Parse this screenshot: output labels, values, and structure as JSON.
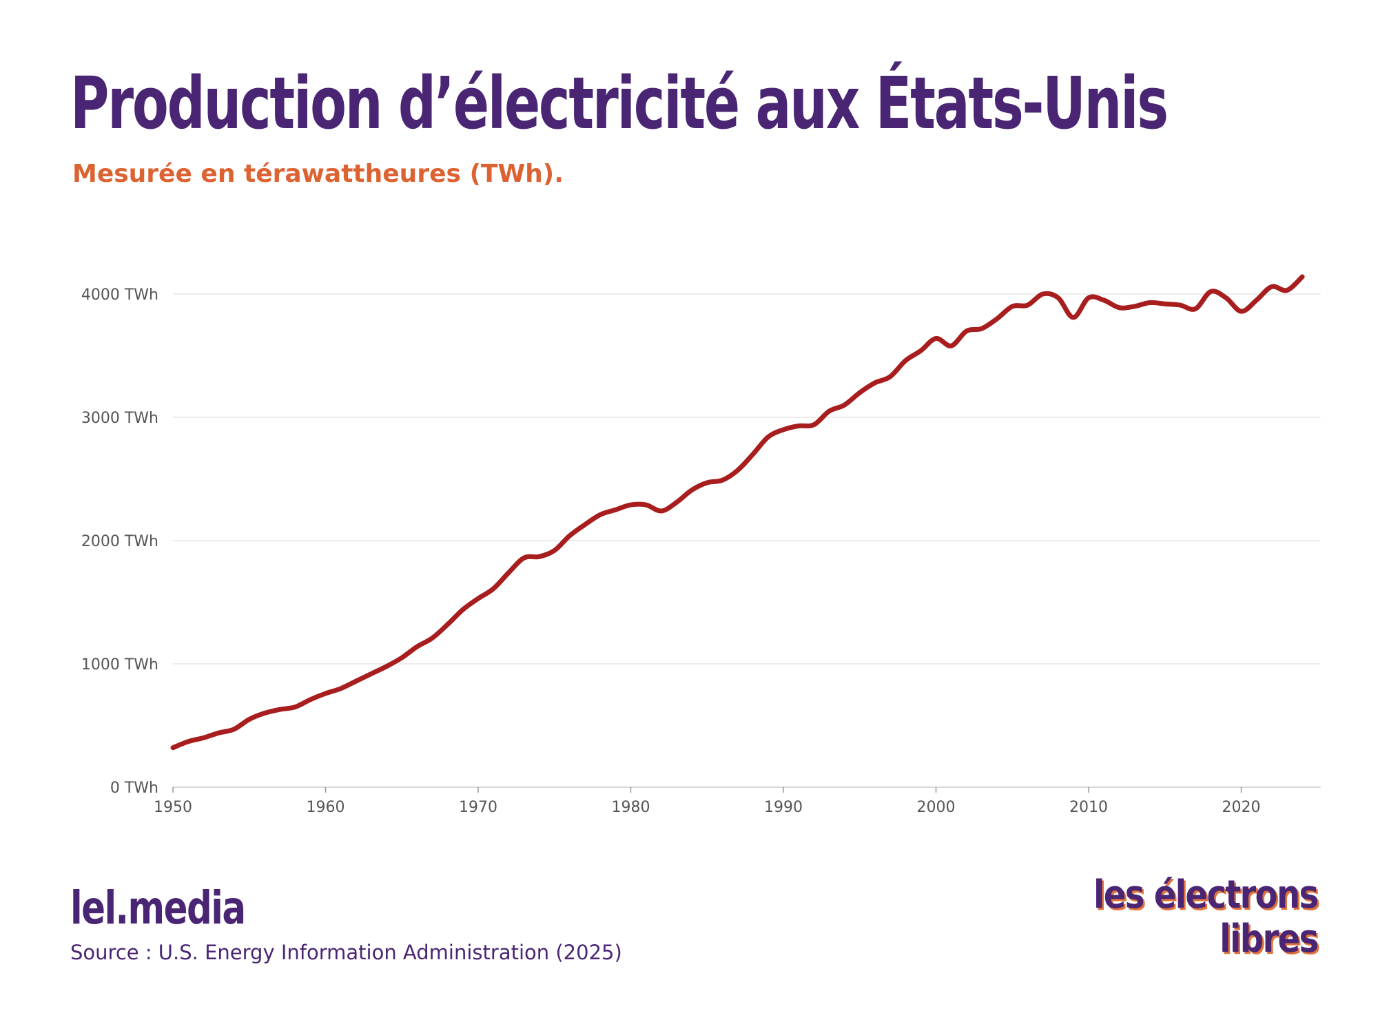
{
  "header": {
    "title": "Production d’électricité aux États-Unis",
    "subtitle": "Mesurée en térawattheures (TWh)."
  },
  "footer": {
    "brand": "lel.media",
    "source": "Source : U.S. Energy Information Administration (2025)",
    "logo_line1": "les électrons",
    "logo_line2": "libres"
  },
  "colors": {
    "title": "#4a2574",
    "subtitle": "#dc6232",
    "line": "#a81d1d",
    "grid": "#e6e6e6"
  },
  "chart_data": {
    "type": "line",
    "title": "Production d’électricité aux États-Unis",
    "subtitle": "Mesurée en térawattheures (TWh).",
    "xlabel": "",
    "ylabel": "",
    "xlim": [
      1950,
      2024
    ],
    "ylim": [
      0,
      4000
    ],
    "x_ticks": [
      1950,
      1960,
      1970,
      1980,
      1990,
      2000,
      2010,
      2020
    ],
    "y_ticks": [
      0,
      1000,
      2000,
      3000,
      4000
    ],
    "y_tick_labels": [
      "0 TWh",
      "1000 TWh",
      "2000 TWh",
      "3000 TWh",
      "4000 TWh"
    ],
    "grid": true,
    "series": [
      {
        "name": "Production d’électricité",
        "x": [
          1950,
          1951,
          1952,
          1953,
          1954,
          1955,
          1956,
          1957,
          1958,
          1959,
          1960,
          1961,
          1962,
          1963,
          1964,
          1965,
          1966,
          1967,
          1968,
          1969,
          1970,
          1971,
          1972,
          1973,
          1974,
          1975,
          1976,
          1977,
          1978,
          1979,
          1980,
          1981,
          1982,
          1983,
          1984,
          1985,
          1986,
          1987,
          1988,
          1989,
          1990,
          1991,
          1992,
          1993,
          1994,
          1995,
          1996,
          1997,
          1998,
          1999,
          2000,
          2001,
          2002,
          2003,
          2004,
          2005,
          2006,
          2007,
          2008,
          2009,
          2010,
          2011,
          2012,
          2013,
          2014,
          2015,
          2016,
          2017,
          2018,
          2019,
          2020,
          2021,
          2022,
          2023,
          2024
        ],
        "values": [
          320,
          370,
          400,
          440,
          470,
          550,
          600,
          630,
          650,
          710,
          760,
          800,
          860,
          920,
          980,
          1050,
          1140,
          1210,
          1320,
          1440,
          1530,
          1610,
          1740,
          1860,
          1870,
          1920,
          2040,
          2130,
          2210,
          2250,
          2290,
          2290,
          2240,
          2310,
          2410,
          2470,
          2490,
          2570,
          2700,
          2840,
          2900,
          2930,
          2940,
          3050,
          3100,
          3200,
          3280,
          3330,
          3460,
          3540,
          3640,
          3580,
          3700,
          3720,
          3800,
          3900,
          3910,
          4000,
          3970,
          3810,
          3970,
          3950,
          3890,
          3900,
          3930,
          3920,
          3910,
          3880,
          4020,
          3970,
          3860,
          3950,
          4060,
          4030,
          4140
        ]
      }
    ]
  }
}
